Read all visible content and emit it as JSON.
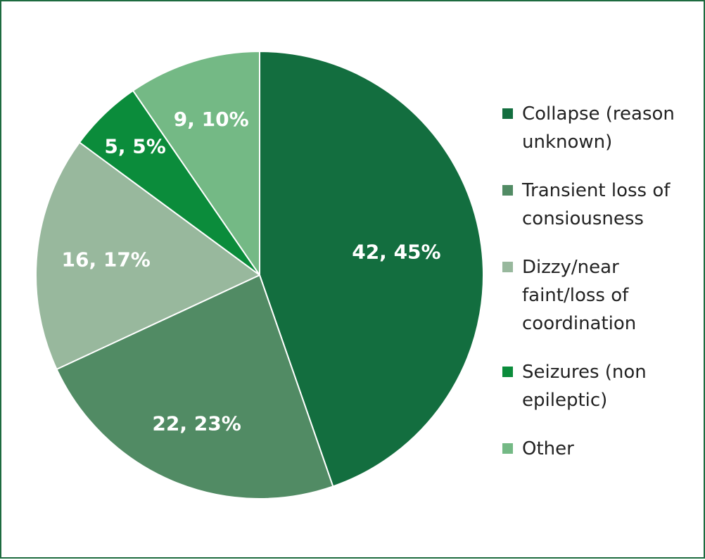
{
  "chart_data": {
    "type": "pie",
    "slices": [
      {
        "label": "Collapse (reason unknown)",
        "value": 42,
        "percent": 45,
        "data_label": "42, 45%",
        "color": "#136e3f"
      },
      {
        "label": "Transient loss of consiousness",
        "value": 22,
        "percent": 23,
        "data_label": "22, 23%",
        "color": "#518b64"
      },
      {
        "label": "Dizzy/near faint/loss of coordination",
        "value": 16,
        "percent": 17,
        "data_label": "16, 17%",
        "color": "#98b89d"
      },
      {
        "label": "Seizures (non epileptic)",
        "value": 5,
        "percent": 5,
        "data_label": "5, 5%",
        "color": "#0b8c3b"
      },
      {
        "label": "Other",
        "value": 9,
        "percent": 10,
        "data_label": "9, 10%",
        "color": "#74b985"
      }
    ],
    "legend_position": "right",
    "start": "top",
    "direction": "clockwise"
  },
  "colors": {
    "frame_border": "#1d6b3f",
    "slice_separator": "#ffffff",
    "label_text": "#ffffff"
  }
}
